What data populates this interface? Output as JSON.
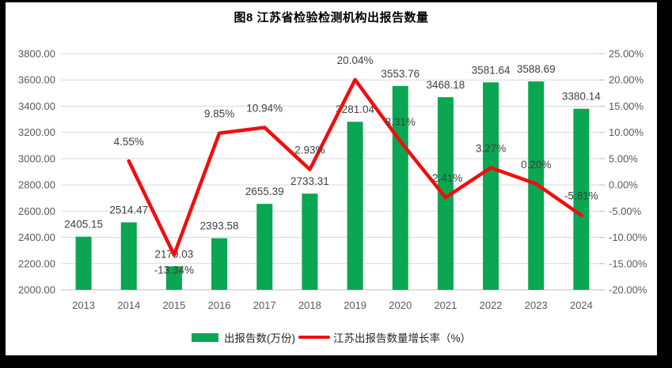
{
  "chart_data": {
    "type": "combo",
    "title": "图8  江苏省检验检测机构出报告数量",
    "categories": [
      "2013",
      "2014",
      "2015",
      "2016",
      "2017",
      "2018",
      "2019",
      "2020",
      "2021",
      "2022",
      "2023",
      "2024"
    ],
    "bar_series": {
      "name": "出报告数(万份)",
      "values": [
        2405.15,
        2514.47,
        2179.03,
        2393.58,
        2655.39,
        2733.31,
        3281.04,
        3553.76,
        3468.18,
        3581.64,
        3588.69,
        3380.14
      ],
      "labels": [
        "2405.15",
        "2514.47",
        "2179.03",
        "2393.58",
        "2655.39",
        "2733.31",
        "3281.04",
        "3553.76",
        "3468.18",
        "3581.64",
        "3588.69",
        "3380.14"
      ],
      "color": "#0aa652"
    },
    "line_series": {
      "name": "江苏出报告数量增长率（%）",
      "values": [
        null,
        4.55,
        -13.34,
        9.85,
        10.94,
        2.93,
        20.04,
        8.31,
        -2.41,
        3.27,
        0.2,
        -5.81
      ],
      "labels": [
        null,
        "4.55%",
        "-13.34%",
        "9.85%",
        "10.94%",
        "2.93%",
        "20.04%",
        "8.31%",
        "-2.41%",
        "3.27%",
        "0.20%",
        "-5.81%"
      ],
      "below_indices": [
        2
      ],
      "color": "#f20d0d"
    },
    "left_axis": {
      "min": 2000,
      "max": 3800,
      "step": 200,
      "ticks": [
        "2000.00",
        "2200.00",
        "2400.00",
        "2600.00",
        "2800.00",
        "3000.00",
        "3200.00",
        "3400.00",
        "3600.00",
        "3800.00"
      ]
    },
    "right_axis": {
      "min": -20,
      "max": 25,
      "step": 5,
      "ticks": [
        "-20.00%",
        "-15.00%",
        "-10.00%",
        "-5.00%",
        "0.00%",
        "5.00%",
        "10.00%",
        "15.00%",
        "20.00%",
        "25.00%"
      ]
    },
    "grid": "horizontal",
    "legend_position": "bottom"
  },
  "legend": {
    "bar_label": "出报告数(万份)",
    "line_label": "江苏出报告数量增长率（%）"
  },
  "colors": {
    "bar": "#0aa652",
    "line": "#f20d0d",
    "grid": "#d9d9d9",
    "axis_text": "#595959",
    "data_label": "#404040"
  }
}
